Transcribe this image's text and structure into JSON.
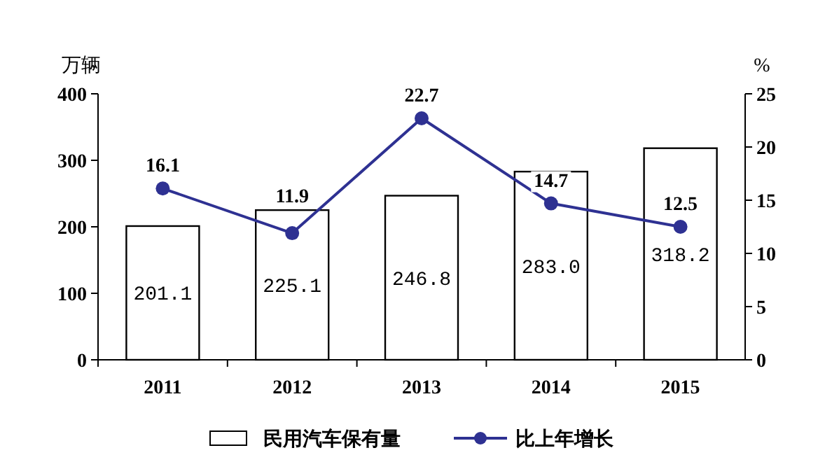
{
  "chart_data": {
    "type": "bar",
    "categories": [
      "2011",
      "2012",
      "2013",
      "2014",
      "2015"
    ],
    "series": [
      {
        "name": "民用汽车保有量",
        "color": "#ffffff",
        "values": [
          201.1,
          225.1,
          246.8,
          283.0,
          318.2
        ],
        "value_labels": [
          "201.1",
          "225.1",
          "246.8",
          "283.0",
          "318.2"
        ]
      },
      {
        "name": "比上年增长",
        "type": "line",
        "axis": "y2",
        "color": "#2e3192",
        "marker": "circle",
        "values": [
          16.1,
          11.9,
          22.7,
          14.7,
          12.5
        ]
      }
    ],
    "ylabel": "万辆",
    "y2label": "%",
    "ylim": [
      0,
      400
    ],
    "yticks": [
      0,
      100,
      200,
      300,
      400
    ],
    "y2lim": [
      0,
      25
    ],
    "y2ticks": [
      0,
      5,
      10,
      15,
      20,
      25
    ],
    "data_labels": true,
    "legend": "bottom"
  }
}
